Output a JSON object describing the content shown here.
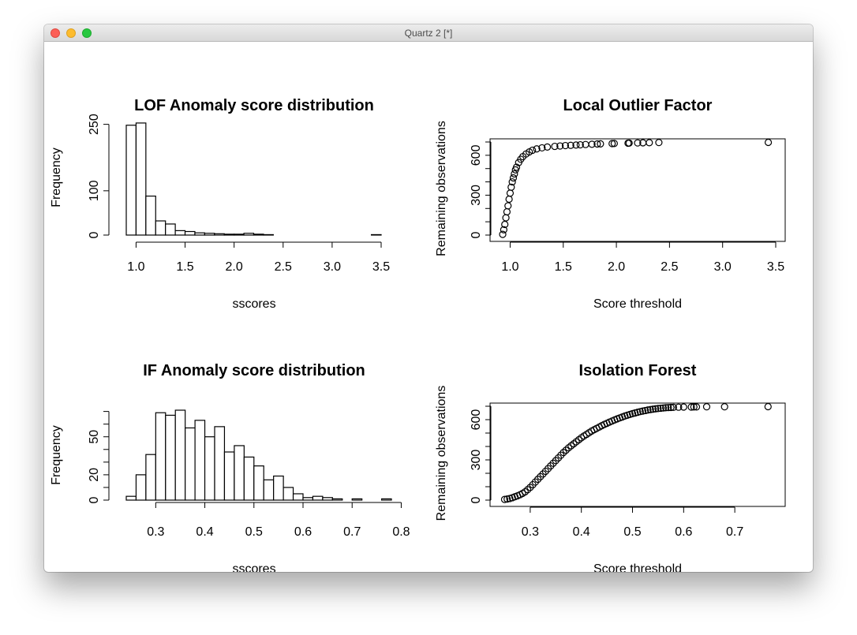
{
  "window": {
    "title": "Quartz 2 [*]"
  },
  "colors": {
    "close": "#fc5f57",
    "minimize": "#fdbc2e",
    "maximize": "#28c840",
    "ink": "#000000"
  },
  "chart_data": [
    {
      "type": "bar",
      "title": "LOF Anomaly score distribution",
      "xlabel": "sscores",
      "ylabel": "Frequency",
      "bin_edges": [
        0.9,
        1.0,
        1.1,
        1.2,
        1.3,
        1.4,
        1.5,
        1.6,
        1.7,
        1.8,
        1.9,
        2.0,
        2.1,
        2.2,
        2.3,
        2.4,
        2.5,
        2.6,
        2.7,
        2.8,
        2.9,
        3.0,
        3.1,
        3.2,
        3.3,
        3.4,
        3.5
      ],
      "values": [
        248,
        253,
        88,
        32,
        25,
        10,
        8,
        5,
        4,
        3,
        2,
        2,
        4,
        2,
        1,
        0,
        0,
        0,
        0,
        0,
        0,
        0,
        0,
        0,
        0,
        1
      ],
      "xlim": [
        0.9,
        3.5
      ],
      "ylim": [
        0,
        260
      ],
      "xticks": [
        "1.0",
        "1.5",
        "2.0",
        "2.5",
        "3.0",
        "3.5"
      ],
      "yticks": [
        "0",
        "100",
        "250"
      ]
    },
    {
      "type": "scatter",
      "title": "Local Outlier Factor",
      "xlabel": "Score threshold",
      "ylabel": "Remaining observations",
      "x": [
        0.93,
        0.94,
        0.95,
        0.96,
        0.97,
        0.98,
        0.99,
        1.0,
        1.01,
        1.02,
        1.03,
        1.04,
        1.05,
        1.06,
        1.08,
        1.1,
        1.12,
        1.15,
        1.18,
        1.21,
        1.25,
        1.3,
        1.35,
        1.42,
        1.47,
        1.52,
        1.57,
        1.62,
        1.66,
        1.71,
        1.77,
        1.82,
        1.85,
        1.96,
        1.98,
        2.11,
        2.12,
        2.2,
        2.25,
        2.31,
        2.4,
        3.43
      ],
      "y": [
        5,
        40,
        80,
        130,
        175,
        220,
        270,
        315,
        360,
        400,
        430,
        460,
        490,
        510,
        545,
        570,
        590,
        610,
        625,
        638,
        648,
        656,
        662,
        667,
        670,
        673,
        675,
        677,
        679,
        681,
        683,
        685,
        686,
        688,
        689,
        691,
        692,
        693,
        694,
        695,
        696,
        697
      ],
      "xlim": [
        0.9,
        3.5
      ],
      "ylim": [
        0,
        700
      ],
      "xticks": [
        "1.0",
        "1.5",
        "2.0",
        "2.5",
        "3.0",
        "3.5"
      ],
      "yticks": [
        "0",
        "300",
        "600"
      ]
    },
    {
      "type": "bar",
      "title": "IF Anomaly score distribution",
      "xlabel": "sscores",
      "ylabel": "Frequency",
      "bin_edges": [
        0.24,
        0.26,
        0.28,
        0.3,
        0.32,
        0.34,
        0.36,
        0.38,
        0.4,
        0.42,
        0.44,
        0.46,
        0.48,
        0.5,
        0.52,
        0.54,
        0.56,
        0.58,
        0.6,
        0.62,
        0.64,
        0.66,
        0.68,
        0.7,
        0.72,
        0.74,
        0.76,
        0.78
      ],
      "values": [
        3,
        20,
        36,
        69,
        67,
        71,
        57,
        63,
        50,
        58,
        38,
        43,
        34,
        27,
        16,
        19,
        10,
        5,
        2,
        3,
        2,
        1,
        0,
        1,
        0,
        0,
        1
      ],
      "xlim": [
        0.24,
        0.78
      ],
      "ylim": [
        0,
        71
      ],
      "xticks": [
        "0.3",
        "0.4",
        "0.5",
        "0.6",
        "0.7",
        "0.8"
      ],
      "yticks": [
        "0",
        "20",
        "50"
      ]
    },
    {
      "type": "scatter",
      "title": "Isolation Forest",
      "xlabel": "Score threshold",
      "ylabel": "Remaining observations",
      "x": [
        0.25,
        0.255,
        0.26,
        0.265,
        0.27,
        0.275,
        0.28,
        0.285,
        0.29,
        0.295,
        0.3,
        0.305,
        0.31,
        0.315,
        0.32,
        0.325,
        0.33,
        0.335,
        0.34,
        0.345,
        0.35,
        0.355,
        0.36,
        0.365,
        0.37,
        0.375,
        0.38,
        0.385,
        0.39,
        0.395,
        0.4,
        0.405,
        0.41,
        0.415,
        0.42,
        0.425,
        0.43,
        0.435,
        0.44,
        0.445,
        0.45,
        0.455,
        0.46,
        0.465,
        0.47,
        0.475,
        0.48,
        0.485,
        0.49,
        0.495,
        0.5,
        0.505,
        0.51,
        0.515,
        0.52,
        0.525,
        0.53,
        0.535,
        0.54,
        0.545,
        0.55,
        0.555,
        0.56,
        0.565,
        0.57,
        0.575,
        0.58,
        0.59,
        0.6,
        0.615,
        0.62,
        0.625,
        0.645,
        0.68,
        0.765
      ],
      "y": [
        5,
        8,
        12,
        18,
        25,
        32,
        40,
        50,
        62,
        78,
        95,
        115,
        135,
        155,
        175,
        195,
        215,
        235,
        255,
        275,
        295,
        315,
        335,
        355,
        372,
        390,
        405,
        420,
        435,
        450,
        465,
        478,
        490,
        502,
        515,
        525,
        535,
        545,
        555,
        565,
        573,
        582,
        590,
        598,
        606,
        613,
        620,
        627,
        633,
        639,
        645,
        650,
        655,
        660,
        664,
        668,
        672,
        675,
        678,
        681,
        683,
        685,
        687,
        689,
        690,
        691,
        692,
        693,
        694,
        694,
        695,
        695,
        696,
        696,
        697
      ],
      "xlim": [
        0.24,
        0.78
      ],
      "ylim": [
        0,
        700
      ],
      "xticks": [
        "0.3",
        "0.4",
        "0.5",
        "0.6",
        "0.7"
      ],
      "yticks": [
        "0",
        "300",
        "600"
      ]
    }
  ]
}
